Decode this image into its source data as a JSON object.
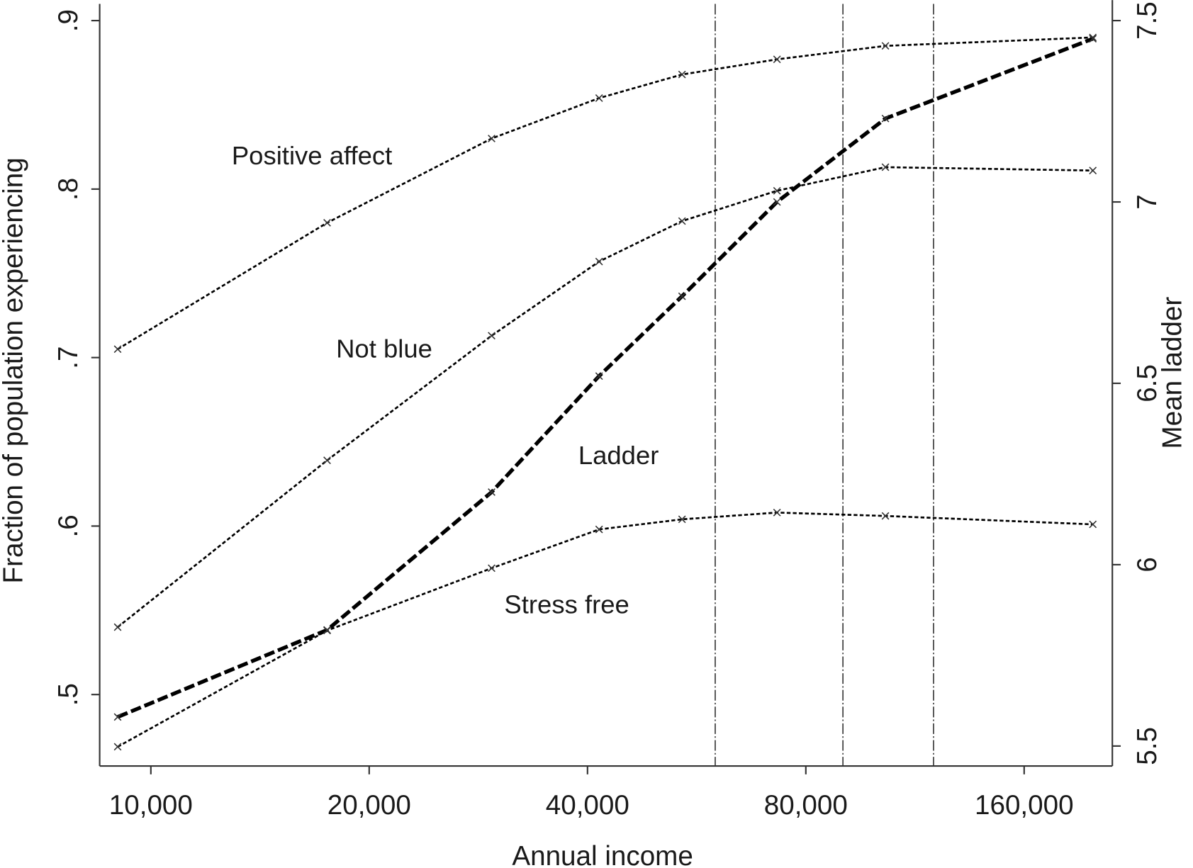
{
  "chart_data": {
    "type": "line",
    "xscale": "log",
    "x": [
      9000,
      17500,
      29500,
      41500,
      54000,
      73000,
      103000,
      199000
    ],
    "xlim": [
      8500,
      211700
    ],
    "xticks": [
      {
        "value": 10000,
        "label": "10,000"
      },
      {
        "value": 20000,
        "label": "20,000"
      },
      {
        "value": 40000,
        "label": "40,000"
      },
      {
        "value": 80000,
        "label": "80,000"
      },
      {
        "value": 160000,
        "label": "160,000"
      }
    ],
    "ylim": [
      0.4576,
      0.9099
    ],
    "yticks": [
      {
        "value": 0.5,
        "label": ".5"
      },
      {
        "value": 0.6,
        "label": ".6"
      },
      {
        "value": 0.7,
        "label": ".7"
      },
      {
        "value": 0.8,
        "label": ".8"
      },
      {
        "value": 0.9,
        "label": ".9"
      }
    ],
    "y2lim": [
      5.445,
      7.546
    ],
    "y2ticks": [
      5.5,
      6,
      6.5,
      7,
      7.5
    ],
    "xlabel": "Annual income",
    "ylabel": "Fraction of population experiencing",
    "y2label": "Mean ladder",
    "vlines": [
      60000,
      90000,
      120000
    ],
    "series": [
      {
        "name": "Positive affect",
        "color": "#000000",
        "values": [
          0.705,
          0.78,
          0.83,
          0.854,
          0.868,
          0.877,
          0.885,
          0.89
        ]
      },
      {
        "name": "Not blue",
        "color": "#000000",
        "values": [
          0.54,
          0.639,
          0.713,
          0.757,
          0.781,
          0.799,
          0.813,
          0.811
        ]
      },
      {
        "name": "Ladder",
        "color": "#000000",
        "axis": "y2",
        "values": [
          5.58,
          5.82,
          6.2,
          6.52,
          6.74,
          7.0,
          7.23,
          7.45
        ]
      },
      {
        "name": "Stress free",
        "color": "#000000",
        "values": [
          0.469,
          0.538,
          0.575,
          0.598,
          0.604,
          0.608,
          0.606,
          0.601
        ]
      }
    ]
  }
}
